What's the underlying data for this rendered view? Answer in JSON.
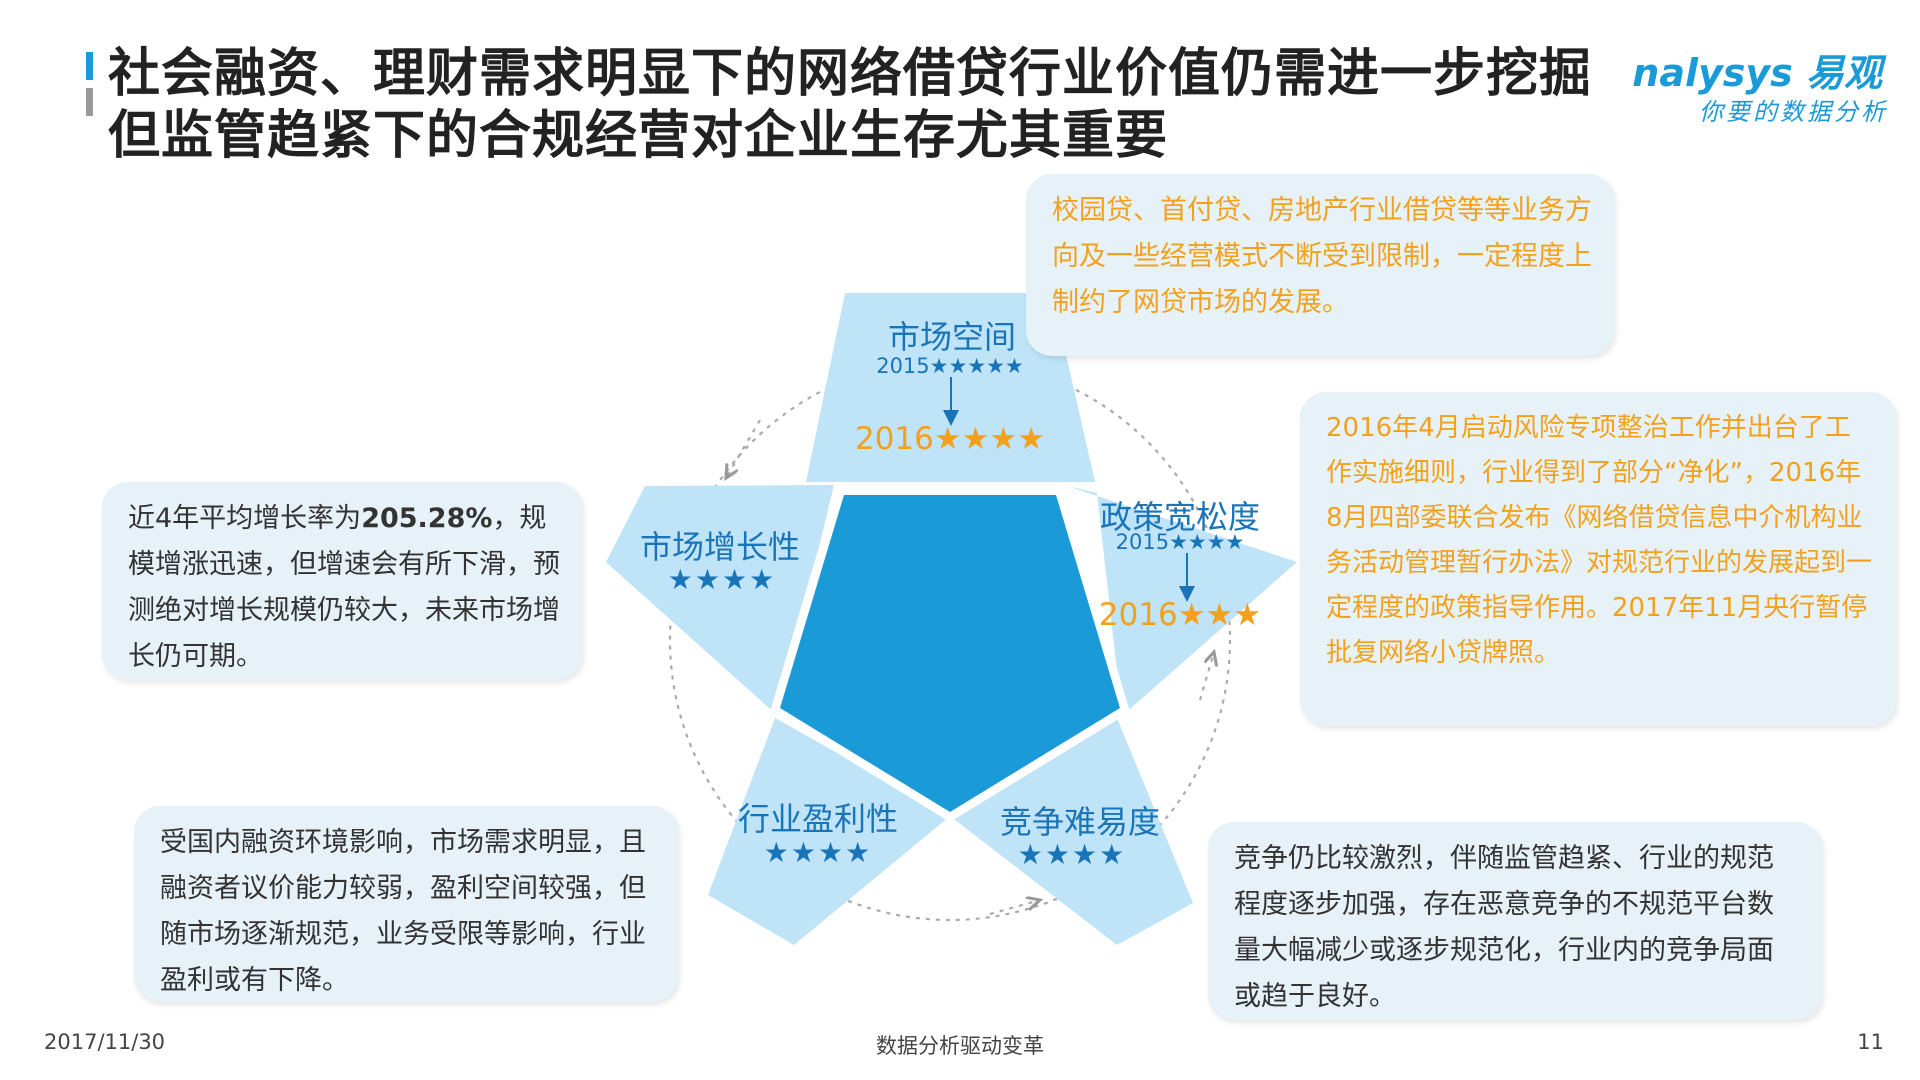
{
  "title": {
    "line1": "社会融资、理财需求明显下的网络借贷行业价值仍需进一步挖掘",
    "line2": "但监管趋紧下的合规经营对企业生存尤其重要"
  },
  "logo": {
    "main": "nalysys 易观",
    "sub": "你要的数据分析"
  },
  "diagram": {
    "market_space": {
      "name": "市场空间",
      "y2015": "2015★★★★★",
      "y2016": "2016★★★★"
    },
    "policy": {
      "name": "政策宽松度",
      "y2015": "2015★★★★",
      "y2016": "2016★★★"
    },
    "growth": {
      "name": "市场增长性",
      "stars": "★★★★"
    },
    "profit": {
      "name": "行业盈利性",
      "stars": "★★★★"
    },
    "competition": {
      "name": "竞争难易度",
      "stars": "★★★★"
    }
  },
  "boxes": {
    "market_space": "校园贷、首付贷、房地产行业借贷等等业务方向及一些经营模式不断受到限制，一定程度上制约了网贷市场的发展。",
    "policy": "2016年4月启动风险专项整治工作并出台了工作实施细则，行业得到了部分“净化”，2016年8月四部委联合发布《网络借贷信息中介机构业务活动管理暂行办法》对规范行业的发展起到一定程度的政策指导作用。2017年11月央行暂停批复网络小贷牌照。",
    "growth": {
      "prefix": "近4年平均增长率为",
      "highlight": "205.28%",
      "suffix": "，规模增涨迅速，但增速会有所下滑，预测绝对增长规模仍较大，未来市场增长仍可期。"
    },
    "profit": "受国内融资环境影响，市场需求明显，且融资者议价能力较弱，盈利空间较强，但随市场逐渐规范，业务受限等影响，行业盈利或有下降。",
    "competition": "竞争仍比较激烈，伴随监管趋紧、行业的规范程度逐步加强，存在恶意竞争的不规范平台数量大幅减少或逐步规范化，行业内的竞争局面或趋于良好。"
  },
  "footer": {
    "date": "2017/11/30",
    "center": "数据分析驱动变革",
    "page": "11"
  },
  "colors": {
    "core": "#1a9ad6",
    "star_light": "#bfe3f7",
    "accent_orange": "#f3a11d",
    "label_blue": "#1a74b8",
    "box_bg": "#e6f2f8"
  }
}
